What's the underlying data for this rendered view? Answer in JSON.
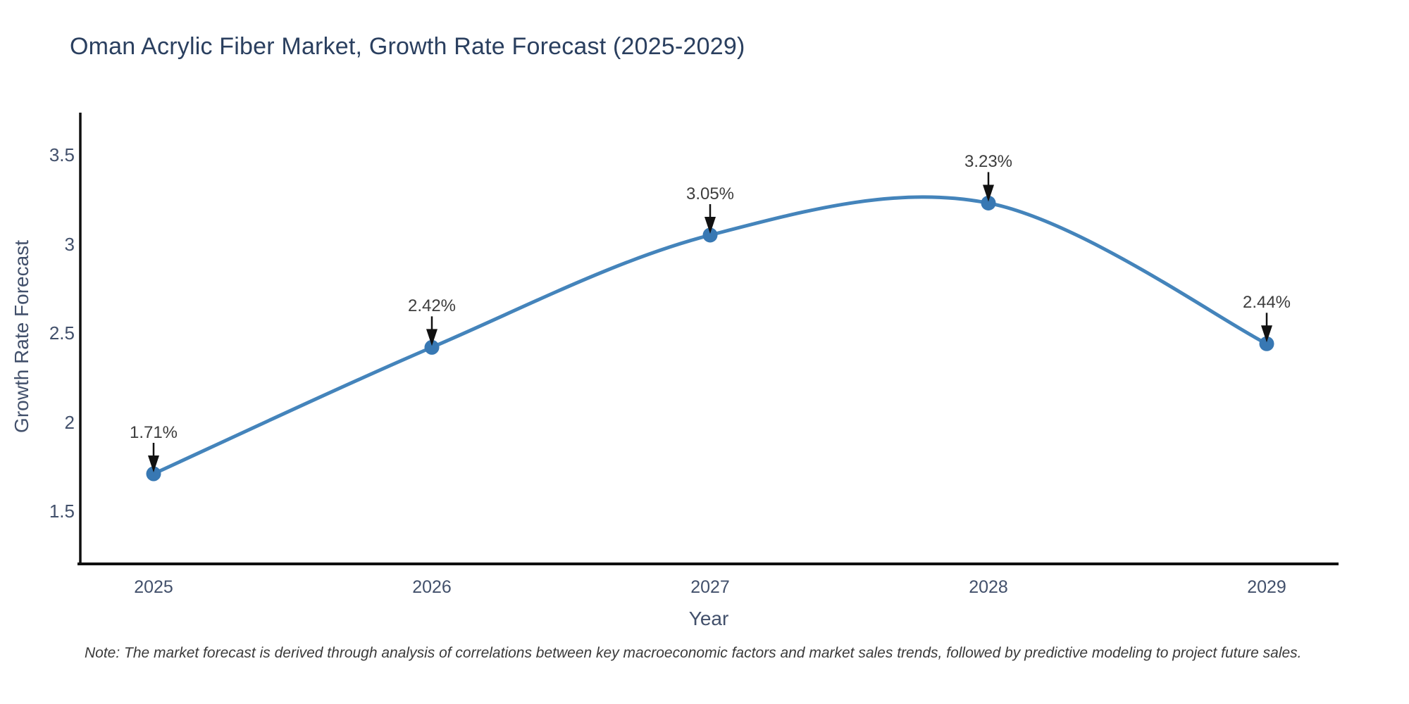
{
  "chart_data": {
    "type": "line",
    "title": "Oman Acrylic Fiber Market, Growth Rate Forecast (2025-2029)",
    "xlabel": "Year",
    "ylabel": "Growth Rate Forecast",
    "categories": [
      "2025",
      "2026",
      "2027",
      "2028",
      "2029"
    ],
    "values": [
      1.71,
      2.42,
      3.05,
      3.23,
      2.44
    ],
    "point_labels": [
      "1.71%",
      "2.42%",
      "3.05%",
      "3.23%",
      "2.44%"
    ],
    "yticks": [
      1.5,
      2,
      2.5,
      3,
      3.5
    ],
    "ytick_labels": [
      "1.5",
      "2",
      "2.5",
      "3",
      "3.5"
    ],
    "ylim": [
      1.2,
      3.76
    ],
    "grid": false,
    "legend": "none",
    "line_shape": "spline",
    "line_color": "#4484bb",
    "marker_color": "#3878b3",
    "axis_color": "#0f0f0f",
    "arrow_color": "#111111",
    "note": "Note: The market forecast is derived through analysis of correlations between key macroeconomic factors and market sales trends, followed by predictive modeling to project future sales."
  }
}
